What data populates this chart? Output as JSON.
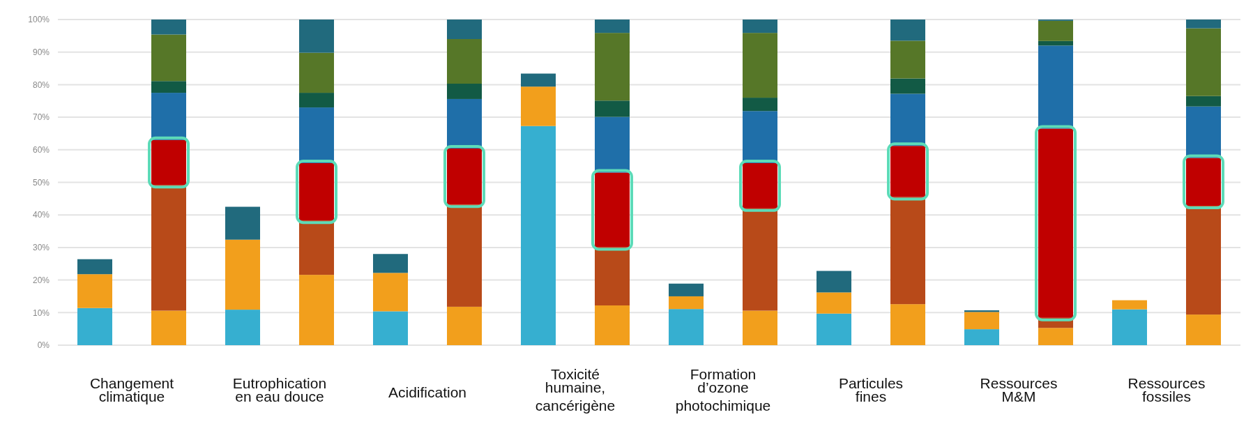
{
  "chart_data": {
    "type": "bar",
    "stacked": true,
    "grid": "y",
    "categories": [
      "Changement climatique",
      null,
      "Eutrophication en eau douce",
      null,
      "Acidification",
      null,
      "Toxicité humaine, cancérigène",
      null,
      "Formation d’ozone photochimique",
      null,
      "Particules fines",
      null,
      "Ressources M&M",
      null,
      "Ressources fossiles",
      null
    ],
    "ylim": [
      0,
      100
    ],
    "yticks": [
      {
        "value": 0,
        "label": "0%"
      },
      {
        "value": 10,
        "label": "10%"
      },
      {
        "value": 20,
        "label": "20%"
      },
      {
        "value": 30,
        "label": "30%"
      },
      {
        "value": 40,
        "label": "40%"
      },
      {
        "value": 50,
        "label": "50%"
      },
      {
        "value": 60,
        "label": "60%"
      },
      {
        "value": 70,
        "label": "70%"
      },
      {
        "value": 80,
        "label": "80%"
      },
      {
        "value": 90,
        "label": "90%"
      },
      {
        "value": 100,
        "label": "100%"
      }
    ],
    "series": [
      {
        "color": "#36afd0",
        "values": [
          11.4,
          null,
          10.9,
          null,
          10.4,
          null,
          67.3,
          null,
          11.1,
          null,
          9.7,
          null,
          4.9,
          null,
          11.0,
          null
        ]
      },
      {
        "color": "#f29f1c",
        "values": [
          10.4,
          10.6,
          21.5,
          21.6,
          11.8,
          11.8,
          12.1,
          12.2,
          3.9,
          10.6,
          6.5,
          12.6,
          5.3,
          5.3,
          2.8,
          9.4
        ]
      },
      {
        "color": "#b84a19",
        "values": [
          null,
          38.6,
          null,
          16.7,
          null,
          31.4,
          null,
          17.9,
          null,
          31.4,
          null,
          32.9,
          null,
          3.1,
          null,
          33.4
        ]
      },
      {
        "color": "#c00000",
        "values": [
          null,
          13.8,
          null,
          17.6,
          null,
          17.2,
          null,
          22.9,
          null,
          13.9,
          null,
          15.7,
          null,
          58.1,
          null,
          14.7
        ]
      },
      {
        "color": "#1f6fa9",
        "values": [
          null,
          14.5,
          null,
          17.1,
          null,
          15.2,
          null,
          17.1,
          null,
          16.0,
          null,
          16.0,
          null,
          25.5,
          null,
          15.8
        ]
      },
      {
        "color": "#125a45",
        "values": [
          null,
          3.6,
          null,
          4.5,
          null,
          4.7,
          null,
          5.0,
          null,
          4.1,
          null,
          4.7,
          null,
          1.4,
          null,
          3.2
        ]
      },
      {
        "color": "#567728",
        "values": [
          null,
          14.3,
          null,
          12.3,
          null,
          13.7,
          null,
          20.8,
          null,
          19.9,
          null,
          11.6,
          null,
          6.2,
          null,
          20.8
        ]
      },
      {
        "color": "#216a7d",
        "values": [
          4.6,
          4.6,
          10.1,
          10.2,
          5.8,
          6.0,
          4.0,
          4.1,
          3.9,
          4.1,
          6.6,
          6.5,
          0.5,
          0.4,
          null,
          2.7
        ]
      }
    ]
  }
}
